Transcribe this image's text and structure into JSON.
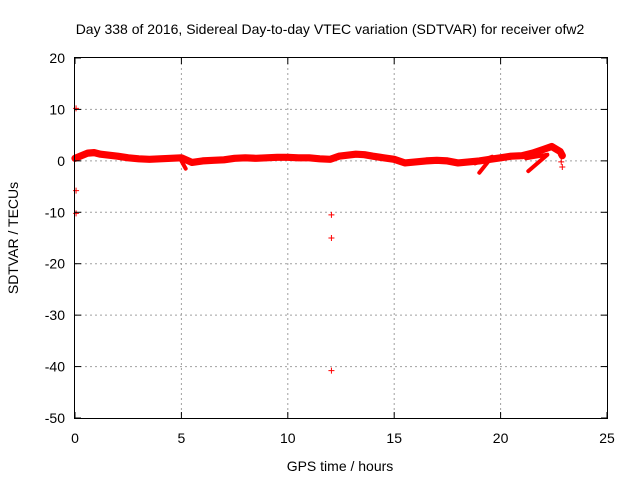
{
  "chart_data": {
    "type": "scatter",
    "title": "Day 338 of 2016, Sidereal Day-to-day VTEC variation (SDTVAR) for receiver ofw2",
    "xlabel": "GPS time / hours",
    "ylabel": "SDTVAR / TECUs",
    "xlim": [
      0,
      25
    ],
    "ylim": [
      -50,
      20
    ],
    "xticks": [
      0,
      5,
      10,
      15,
      20,
      25
    ],
    "yticks": [
      -50,
      -40,
      -30,
      -20,
      -10,
      0,
      10,
      20
    ],
    "grid": true,
    "series_color": "#ff0000",
    "series": [
      {
        "name": "SDTVAR",
        "marker": "plus",
        "dense_band": [
          [
            0.0,
            0.5
          ],
          [
            0.3,
            1.0
          ],
          [
            0.6,
            1.5
          ],
          [
            0.9,
            1.6
          ],
          [
            1.2,
            1.3
          ],
          [
            1.6,
            1.1
          ],
          [
            2.0,
            0.9
          ],
          [
            2.5,
            0.6
          ],
          [
            3.0,
            0.4
          ],
          [
            3.5,
            0.3
          ],
          [
            4.0,
            0.4
          ],
          [
            4.5,
            0.5
          ],
          [
            5.0,
            0.6
          ],
          [
            5.5,
            -0.3
          ],
          [
            6.0,
            0.0
          ],
          [
            6.5,
            0.1
          ],
          [
            7.0,
            0.2
          ],
          [
            7.5,
            0.5
          ],
          [
            8.0,
            0.6
          ],
          [
            8.5,
            0.5
          ],
          [
            9.0,
            0.6
          ],
          [
            9.5,
            0.7
          ],
          [
            10.0,
            0.7
          ],
          [
            10.5,
            0.6
          ],
          [
            11.0,
            0.6
          ],
          [
            11.5,
            0.4
          ],
          [
            12.0,
            0.3
          ],
          [
            12.4,
            0.9
          ],
          [
            12.8,
            1.1
          ],
          [
            13.2,
            1.3
          ],
          [
            13.6,
            1.2
          ],
          [
            14.0,
            0.9
          ],
          [
            14.5,
            0.6
          ],
          [
            15.0,
            0.3
          ],
          [
            15.5,
            -0.4
          ],
          [
            16.0,
            -0.2
          ],
          [
            16.5,
            0.0
          ],
          [
            17.0,
            0.1
          ],
          [
            17.5,
            0.0
          ],
          [
            18.0,
            -0.4
          ],
          [
            18.5,
            -0.2
          ],
          [
            19.0,
            0.0
          ],
          [
            19.5,
            0.3
          ],
          [
            20.0,
            0.6
          ],
          [
            20.5,
            0.9
          ],
          [
            21.0,
            1.0
          ],
          [
            21.5,
            1.5
          ],
          [
            22.0,
            2.2
          ],
          [
            22.4,
            2.8
          ],
          [
            22.8,
            1.8
          ],
          [
            22.9,
            1.0
          ]
        ],
        "band_half_width": 0.7,
        "lower_branches": [
          [
            [
              5.0,
              0.0
            ],
            [
              5.2,
              -1.5
            ]
          ],
          [
            [
              18.8,
              -0.5
            ],
            [
              19.6,
              0.8
            ],
            [
              19.0,
              -2.3
            ]
          ],
          [
            [
              21.2,
              0.5
            ],
            [
              22.2,
              1.2
            ],
            [
              21.3,
              -2.0
            ]
          ]
        ],
        "points": [
          [
            0.05,
            10.2
          ],
          [
            0.05,
            -5.8
          ],
          [
            0.05,
            -10.2
          ],
          [
            12.05,
            -10.5
          ],
          [
            12.05,
            -15.0
          ],
          [
            12.05,
            -40.8
          ],
          [
            22.9,
            -1.2
          ],
          [
            22.85,
            -0.2
          ]
        ]
      }
    ]
  }
}
